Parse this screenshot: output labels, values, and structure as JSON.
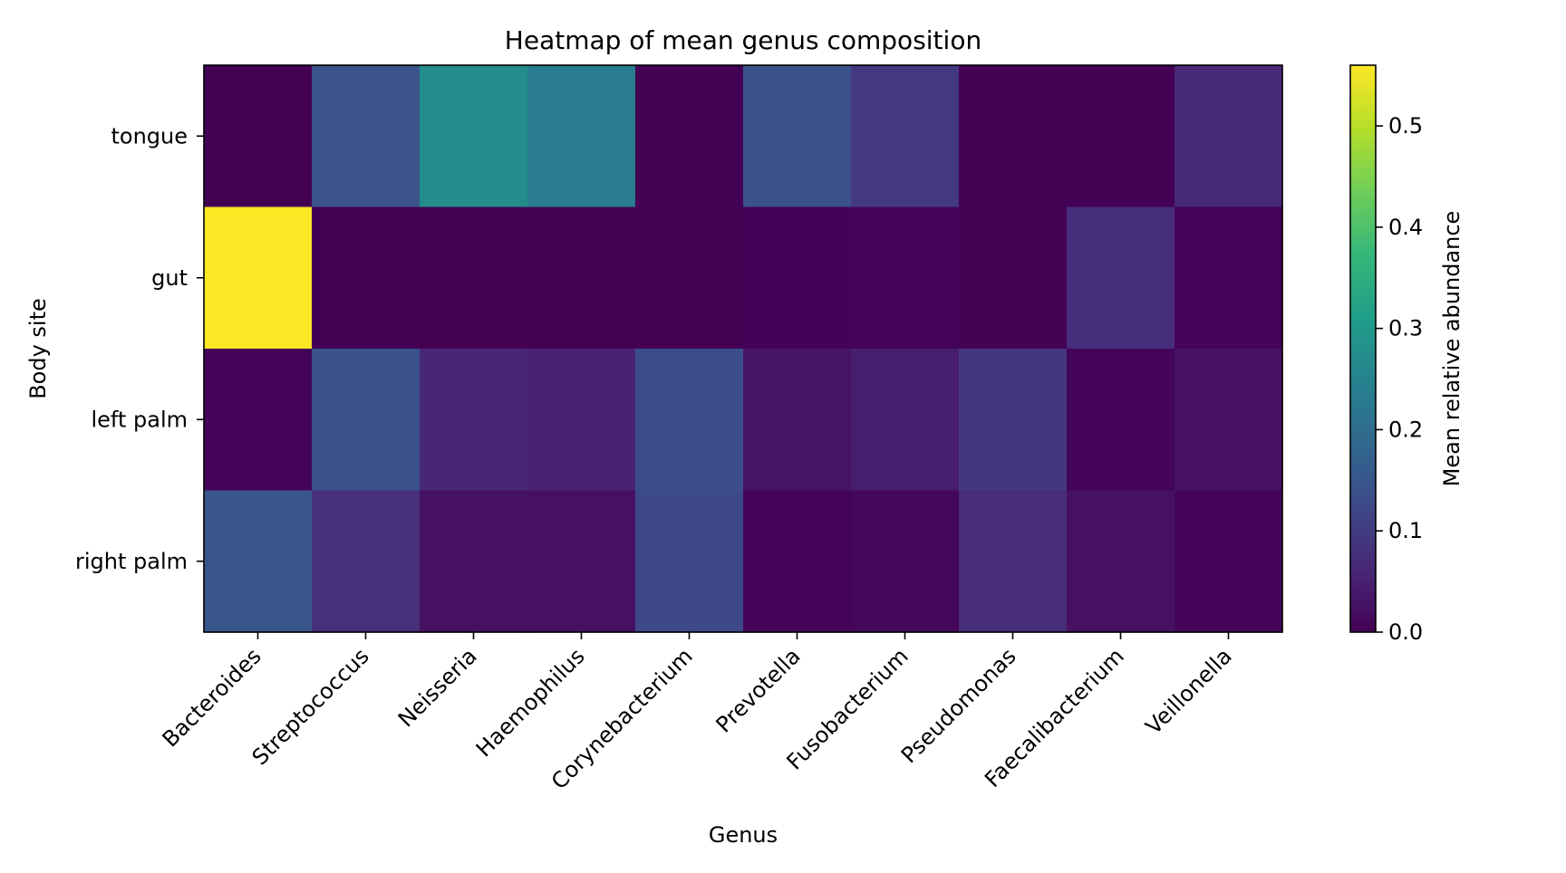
{
  "chart_data": {
    "type": "heatmap",
    "title": "Heatmap of mean genus composition",
    "xlabel": "Genus",
    "ylabel": "Body site",
    "x_categories": [
      "Bacteroides",
      "Streptococcus",
      "Neisseria",
      "Haemophilus",
      "Corynebacterium",
      "Prevotella",
      "Fusobacterium",
      "Pseudomonas",
      "Faecalibacterium",
      "Veillonella"
    ],
    "y_categories": [
      "tongue",
      "gut",
      "left palm",
      "right palm"
    ],
    "values": [
      [
        0.0,
        0.145,
        0.27,
        0.235,
        0.002,
        0.14,
        0.095,
        0.001,
        0.001,
        0.065
      ],
      [
        0.56,
        0.0,
        0.0,
        0.0,
        0.0,
        0.003,
        0.007,
        0.002,
        0.072,
        0.005
      ],
      [
        0.005,
        0.14,
        0.06,
        0.055,
        0.135,
        0.03,
        0.045,
        0.09,
        0.005,
        0.025
      ],
      [
        0.15,
        0.075,
        0.025,
        0.025,
        0.125,
        0.005,
        0.01,
        0.07,
        0.025,
        0.008
      ]
    ],
    "colormap": "viridis",
    "vmin": 0.0,
    "vmax": 0.56,
    "colorbar": {
      "label": "Mean relative abundance",
      "ticks": [
        0.0,
        0.1,
        0.2,
        0.3,
        0.4,
        0.5
      ],
      "tick_labels": [
        "0.0",
        "0.1",
        "0.2",
        "0.3",
        "0.4",
        "0.5"
      ]
    }
  }
}
